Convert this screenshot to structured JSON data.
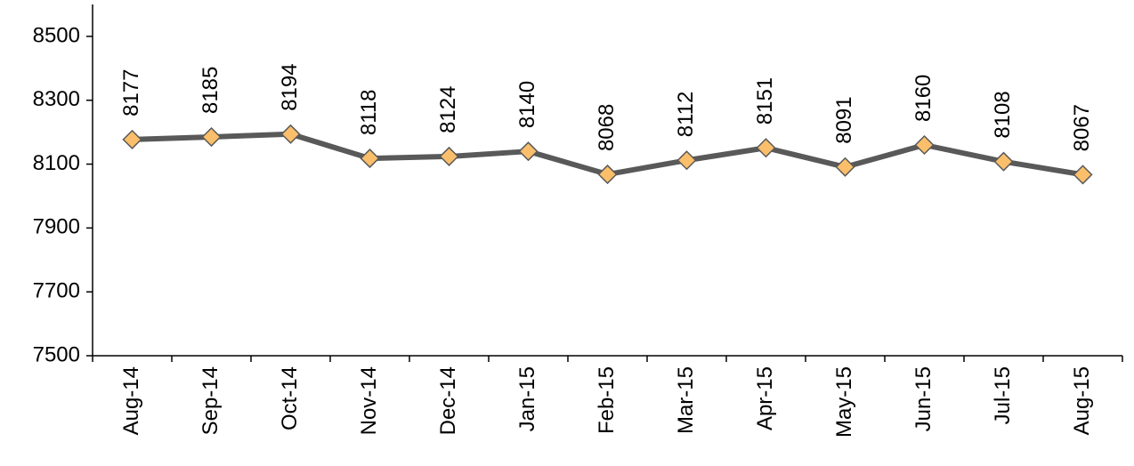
{
  "chart_data": {
    "type": "line",
    "categories": [
      "Aug-14",
      "Sep-14",
      "Oct-14",
      "Nov-14",
      "Dec-14",
      "Jan-15",
      "Feb-15",
      "Mar-15",
      "Apr-15",
      "May-15",
      "Jun-15",
      "Jul-15",
      "Aug-15"
    ],
    "series": [
      {
        "name": null,
        "color": "#595959",
        "marker_color": "#fbbf6b",
        "values": [
          8177,
          8185,
          8194,
          8118,
          8124,
          8140,
          8068,
          8112,
          8151,
          8091,
          8160,
          8108,
          8067
        ]
      }
    ],
    "ylim": [
      7500,
      8600
    ],
    "yticks": [
      7500,
      7700,
      7900,
      8100,
      8300,
      8500
    ],
    "grid": false
  }
}
